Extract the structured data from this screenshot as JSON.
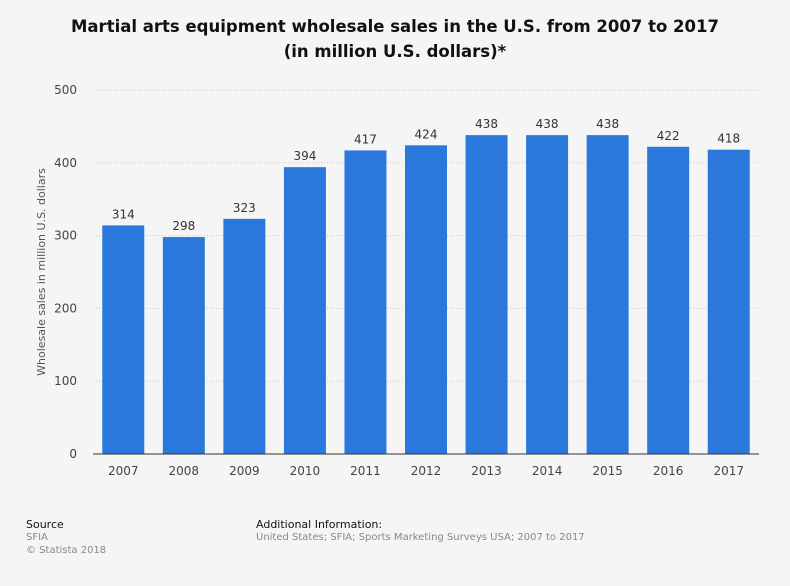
{
  "chart_data": {
    "type": "bar",
    "title": "Martial arts equipment wholesale sales in the U.S. from 2007 to 2017 (in million U.S. dollars)*",
    "title_lines": [
      "Martial arts equipment wholesale sales in the U.S. from 2007 to 2017",
      "(in million U.S. dollars)*"
    ],
    "categories": [
      "2007",
      "2008",
      "2009",
      "2010",
      "2011",
      "2012",
      "2013",
      "2014",
      "2015",
      "2016",
      "2017"
    ],
    "values": [
      314,
      298,
      323,
      394,
      417,
      424,
      438,
      438,
      438,
      422,
      418
    ],
    "xlabel": "",
    "ylabel": "Wholesale sales in million U.S. dollars",
    "ylim": [
      0,
      500
    ],
    "yticks": [
      0,
      100,
      200,
      300,
      400,
      500
    ],
    "grid": true,
    "bar_color": "#2a78dc"
  },
  "footer": {
    "source_heading": "Source",
    "source_lines": [
      "SFIA",
      "© Statista 2018"
    ],
    "additional_heading": "Additional Information:",
    "additional_text": "United States; SFIA; Sports Marketing Surveys USA; 2007 to 2017"
  }
}
